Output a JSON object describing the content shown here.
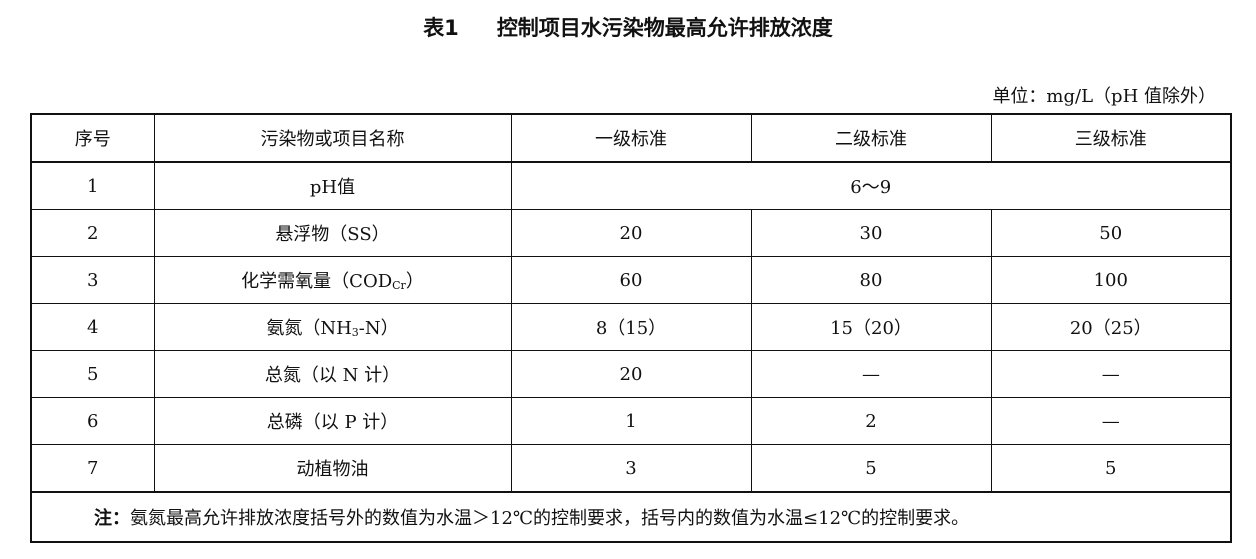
{
  "title": {
    "number": "表1",
    "text": "控制项目水污染物最高允许排放浓度"
  },
  "unit": "单位：mg/L（pH 值除外）",
  "table": {
    "headers": [
      "序号",
      "污染物或项目名称",
      "一级标准",
      "二级标准",
      "三级标准"
    ],
    "rows": [
      {
        "no": "1",
        "name": "pH值",
        "sub": "",
        "suffix": "",
        "merged": "6～9"
      },
      {
        "no": "2",
        "name": "悬浮物（SS）",
        "sub": "",
        "suffix": "",
        "v": [
          "20",
          "30",
          "50"
        ]
      },
      {
        "no": "3",
        "name": "化学需氧量（COD",
        "sub": "Cr",
        "suffix": "）",
        "v": [
          "60",
          "80",
          "100"
        ]
      },
      {
        "no": "4",
        "name": "氨氮（NH",
        "sub": "3",
        "suffix": "-N）",
        "v": [
          "8（15）",
          "15（20）",
          "20（25）"
        ]
      },
      {
        "no": "5",
        "name": "总氮（以 N 计）",
        "sub": "",
        "suffix": "",
        "v": [
          "20",
          "—",
          "—"
        ]
      },
      {
        "no": "6",
        "name": "总磷（以 P 计）",
        "sub": "",
        "suffix": "",
        "v": [
          "1",
          "2",
          "—"
        ]
      },
      {
        "no": "7",
        "name": "动植物油",
        "sub": "",
        "suffix": "",
        "v": [
          "3",
          "5",
          "5"
        ]
      }
    ],
    "note_label": "注：",
    "note": "氨氮最高允许排放浓度括号外的数值为水温＞12℃的控制要求，括号内的数值为水温≤12℃的控制要求。"
  }
}
